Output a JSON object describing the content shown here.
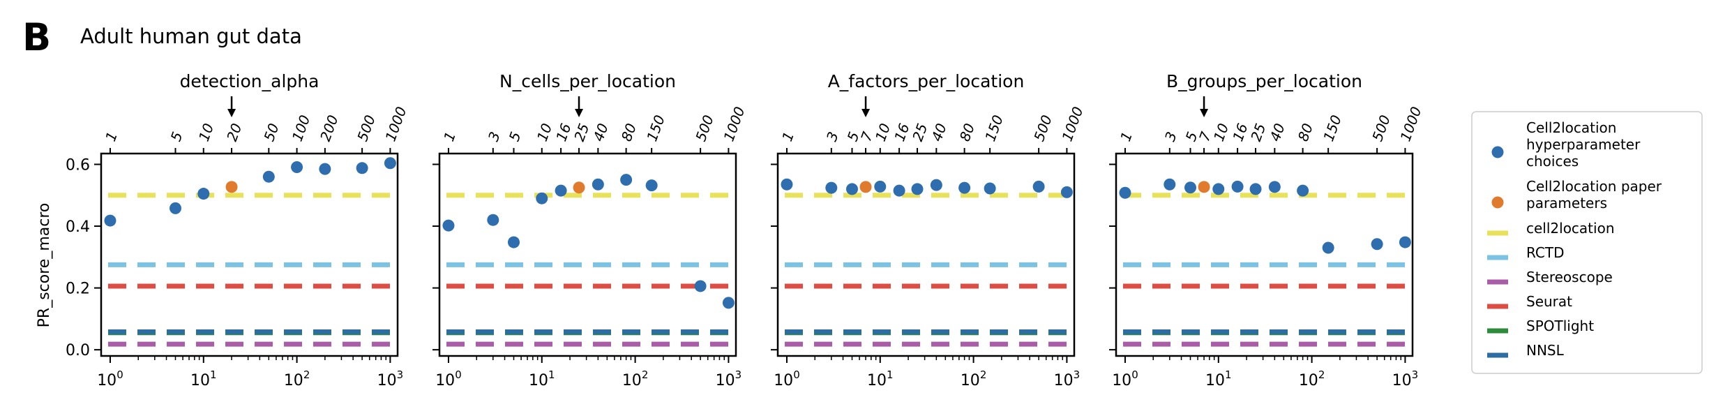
{
  "figure": {
    "panel_letter": "B",
    "title": "Adult human gut data",
    "ylabel": "PR_score_macro"
  },
  "colors": {
    "cell2location": "#E8E25A",
    "RCTD": "#7CC3E3",
    "Stereoscope": "#A85DA6",
    "Seurat": "#DE4D43",
    "SPOTlight": "#2C8C3C",
    "NNSL": "#2D6DA1",
    "hyper_point": "#2F6EAE",
    "paper_point": "#E07B2E"
  },
  "legend": {
    "entries": [
      {
        "key": "hyper",
        "label_lines": [
          "Cell2location",
          "hyperparameter",
          "choices"
        ],
        "kind": "point",
        "color": "#2F6EAE"
      },
      {
        "key": "paper",
        "label_lines": [
          "Cell2location paper",
          "parameters"
        ],
        "kind": "point",
        "color": "#E07B2E"
      },
      {
        "key": "cell2location",
        "label_lines": [
          "cell2location"
        ],
        "kind": "dash",
        "color": "#E8E25A"
      },
      {
        "key": "RCTD",
        "label_lines": [
          "RCTD"
        ],
        "kind": "dash",
        "color": "#7CC3E3"
      },
      {
        "key": "Stereoscope",
        "label_lines": [
          "Stereoscope"
        ],
        "kind": "dash",
        "color": "#A85DA6"
      },
      {
        "key": "Seurat",
        "label_lines": [
          "Seurat"
        ],
        "kind": "dash",
        "color": "#DE4D43"
      },
      {
        "key": "SPOTlight",
        "label_lines": [
          "SPOTlight"
        ],
        "kind": "dash",
        "color": "#2C8C3C"
      },
      {
        "key": "NNSL",
        "label_lines": [
          "NNSL"
        ],
        "kind": "dash",
        "color": "#2D6DA1"
      }
    ]
  },
  "chart_data": [
    {
      "type": "scatter",
      "title": "detection_alpha",
      "xscale": "log",
      "xlim": [
        0.8,
        1200
      ],
      "ylim": [
        -0.02,
        0.635
      ],
      "x_major_ticks": [
        1,
        10,
        100,
        1000
      ],
      "x_major_labels": [
        [
          "10",
          "0"
        ],
        [
          "10",
          "1"
        ],
        [
          "10",
          "2"
        ],
        [
          "10",
          "3"
        ]
      ],
      "y_ticks": [
        0.0,
        0.2,
        0.4,
        0.6
      ],
      "y_tick_labels": [
        "0.0",
        "0.2",
        "0.4",
        "0.6"
      ],
      "top_ticks": [
        1,
        5,
        10,
        20,
        50,
        100,
        200,
        500,
        1000
      ],
      "top_labels": [
        "1",
        "5",
        "10",
        "20",
        "50",
        "100",
        "200",
        "500",
        "1000"
      ],
      "arrow_at": 20,
      "hyper_points": {
        "x": [
          1,
          5,
          10,
          50,
          100,
          200,
          500,
          1000
        ],
        "y": [
          0.418,
          0.458,
          0.505,
          0.56,
          0.591,
          0.585,
          0.588,
          0.604
        ]
      },
      "paper_point": {
        "x": 20,
        "y": 0.527
      },
      "baselines": {
        "cell2location": 0.5,
        "RCTD": 0.275,
        "Seurat": 0.206,
        "NNSL": 0.058,
        "SPOTlight": 0.055,
        "Stereoscope": 0.018
      }
    },
    {
      "type": "scatter",
      "title": "N_cells_per_location",
      "xscale": "log",
      "xlim": [
        0.8,
        1200
      ],
      "ylim": [
        -0.02,
        0.635
      ],
      "x_major_ticks": [
        1,
        10,
        100,
        1000
      ],
      "x_major_labels": [
        [
          "10",
          "0"
        ],
        [
          "10",
          "1"
        ],
        [
          "10",
          "2"
        ],
        [
          "10",
          "3"
        ]
      ],
      "y_ticks": [
        0.0,
        0.2,
        0.4,
        0.6
      ],
      "y_tick_labels": [
        "",
        "",
        "",
        ""
      ],
      "top_ticks": [
        1,
        3,
        5,
        10,
        16,
        25,
        40,
        80,
        150,
        500,
        1000
      ],
      "top_labels": [
        "1",
        "3",
        "5",
        "10",
        "16",
        "25",
        "40",
        "80",
        "150",
        "500",
        "1000"
      ],
      "arrow_at": 25,
      "hyper_points": {
        "x": [
          1,
          3,
          5,
          10,
          16,
          40,
          80,
          150,
          500,
          1000
        ],
        "y": [
          0.402,
          0.42,
          0.348,
          0.49,
          0.515,
          0.535,
          0.55,
          0.532,
          0.206,
          0.152
        ]
      },
      "paper_point": {
        "x": 25,
        "y": 0.525
      },
      "baselines": {
        "cell2location": 0.5,
        "RCTD": 0.275,
        "Seurat": 0.206,
        "NNSL": 0.058,
        "SPOTlight": 0.055,
        "Stereoscope": 0.018
      }
    },
    {
      "type": "scatter",
      "title": "A_factors_per_location",
      "xscale": "log",
      "xlim": [
        0.8,
        1200
      ],
      "ylim": [
        -0.02,
        0.635
      ],
      "x_major_ticks": [
        1,
        10,
        100,
        1000
      ],
      "x_major_labels": [
        [
          "10",
          "0"
        ],
        [
          "10",
          "1"
        ],
        [
          "10",
          "2"
        ],
        [
          "10",
          "3"
        ]
      ],
      "y_ticks": [
        0.0,
        0.2,
        0.4,
        0.6
      ],
      "y_tick_labels": [
        "",
        "",
        "",
        ""
      ],
      "top_ticks": [
        1,
        3,
        5,
        7,
        10,
        16,
        25,
        40,
        80,
        150,
        500,
        1000
      ],
      "top_labels": [
        "1",
        "3",
        "5",
        "7",
        "10",
        "16",
        "25",
        "40",
        "80",
        "150",
        "500",
        "1000"
      ],
      "arrow_at": 7,
      "hyper_points": {
        "x": [
          1,
          3,
          5,
          10,
          16,
          25,
          40,
          80,
          150,
          500,
          1000
        ],
        "y": [
          0.535,
          0.524,
          0.52,
          0.528,
          0.515,
          0.52,
          0.533,
          0.524,
          0.522,
          0.528,
          0.51
        ]
      },
      "paper_point": {
        "x": 7,
        "y": 0.527
      },
      "baselines": {
        "cell2location": 0.5,
        "RCTD": 0.275,
        "Seurat": 0.206,
        "NNSL": 0.058,
        "SPOTlight": 0.055,
        "Stereoscope": 0.018
      }
    },
    {
      "type": "scatter",
      "title": "B_groups_per_location",
      "xscale": "log",
      "xlim": [
        0.8,
        1200
      ],
      "ylim": [
        -0.02,
        0.635
      ],
      "x_major_ticks": [
        1,
        10,
        100,
        1000
      ],
      "x_major_labels": [
        [
          "10",
          "0"
        ],
        [
          "10",
          "1"
        ],
        [
          "10",
          "2"
        ],
        [
          "10",
          "3"
        ]
      ],
      "y_ticks": [
        0.0,
        0.2,
        0.4,
        0.6
      ],
      "y_tick_labels": [
        "",
        "",
        "",
        ""
      ],
      "top_ticks": [
        1,
        3,
        5,
        7,
        10,
        16,
        25,
        40,
        80,
        150,
        500,
        1000
      ],
      "top_labels": [
        "1",
        "3",
        "5",
        "7",
        "10",
        "16",
        "25",
        "40",
        "80",
        "150",
        "500",
        "1000"
      ],
      "arrow_at": 7,
      "hyper_points": {
        "x": [
          1,
          3,
          5,
          10,
          16,
          25,
          40,
          80,
          150,
          500,
          1000
        ],
        "y": [
          0.508,
          0.535,
          0.525,
          0.52,
          0.528,
          0.52,
          0.527,
          0.515,
          0.33,
          0.342,
          0.348
        ]
      },
      "paper_point": {
        "x": 7,
        "y": 0.527
      },
      "baselines": {
        "cell2location": 0.5,
        "RCTD": 0.275,
        "Seurat": 0.206,
        "NNSL": 0.058,
        "SPOTlight": 0.055,
        "Stereoscope": 0.018
      }
    }
  ]
}
